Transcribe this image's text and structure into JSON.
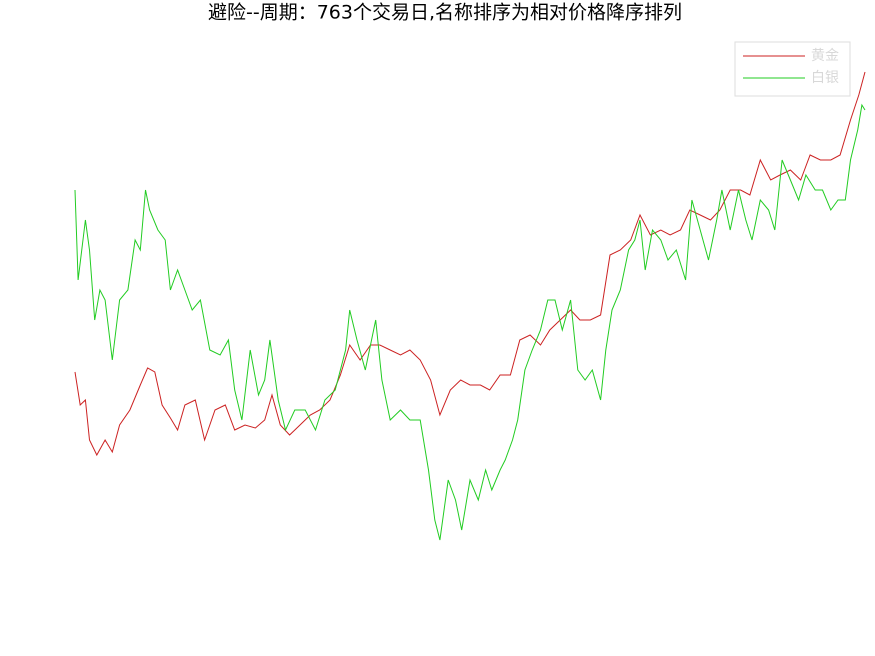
{
  "chart_data": {
    "type": "line",
    "title": "避险--周期：763个交易日,名称排序为相对价格降序排列",
    "xlim": [
      0,
      762
    ],
    "ylim": [
      0,
      112
    ],
    "legend": "upper right",
    "series": [
      {
        "name": "黄金",
        "color": "#cc2222",
        "x": [
          0,
          5,
          10,
          14,
          21,
          29,
          36,
          43,
          53,
          63,
          70,
          77,
          84,
          92,
          99,
          106,
          116,
          125,
          135,
          145,
          154,
          164,
          174,
          183,
          190,
          198,
          207,
          217,
          227,
          236,
          246,
          256,
          265,
          275,
          285,
          294,
          304,
          314,
          323,
          333,
          343,
          352,
          362,
          372,
          381,
          391,
          400,
          410,
          420,
          429,
          439,
          449,
          458,
          468,
          478,
          487,
          497,
          507,
          516,
          526,
          536,
          545,
          555,
          565,
          574,
          584,
          593,
          603,
          613,
          622,
          632,
          642,
          651,
          661,
          671,
          680,
          690,
          700,
          709,
          719,
          729,
          738,
          748,
          756,
          762
        ],
        "values": [
          45.6,
          39,
          40,
          32,
          29,
          32,
          29.6,
          35,
          38,
          43,
          46.4,
          45.6,
          39,
          36.4,
          34,
          39,
          40,
          32,
          38,
          39,
          34,
          35,
          34.4,
          36,
          41,
          35,
          33,
          35,
          37,
          38,
          40,
          45,
          51,
          48,
          51,
          51,
          50,
          49,
          50,
          48,
          44,
          37,
          42,
          44,
          43,
          43,
          42,
          45,
          45,
          52,
          53,
          51,
          54,
          56,
          58,
          56,
          56,
          57,
          69,
          70,
          72,
          77,
          73,
          74,
          73,
          74,
          78,
          77,
          76,
          78,
          82,
          82,
          81,
          88,
          84,
          85,
          86,
          84,
          89,
          88,
          88,
          89,
          96,
          101,
          105.6
        ]
      },
      {
        "name": "白银",
        "color": "#22cc22",
        "x": [
          0,
          3,
          10,
          14,
          19,
          24,
          29,
          36,
          43,
          51,
          58,
          63,
          68,
          72,
          80,
          87,
          92,
          99,
          106,
          113,
          121,
          130,
          140,
          148,
          154,
          161,
          169,
          177,
          183,
          188,
          196,
          203,
          212,
          222,
          232,
          241,
          251,
          261,
          265,
          272,
          280,
          290,
          296,
          304,
          314,
          323,
          333,
          341,
          347,
          352,
          360,
          367,
          373,
          381,
          389,
          396,
          402,
          410,
          415,
          422,
          427,
          434,
          441,
          449,
          456,
          463,
          470,
          478,
          485,
          492,
          499,
          507,
          512,
          518,
          526,
          534,
          540,
          545,
          550,
          557,
          565,
          572,
          580,
          589,
          595,
          603,
          611,
          619,
          624,
          632,
          640,
          647,
          653,
          661,
          669,
          675,
          682,
          690,
          698,
          705,
          714,
          721,
          729,
          736,
          743,
          748,
          755,
          759,
          762
        ],
        "values": [
          82,
          64,
          76,
          70,
          56,
          62,
          60,
          48,
          60,
          62,
          72,
          70,
          82,
          78,
          74,
          72,
          62,
          66,
          62,
          58,
          60,
          50,
          49,
          52,
          42,
          36,
          50,
          41,
          44,
          52,
          40,
          34,
          38,
          38,
          34,
          40,
          42,
          50,
          58,
          52,
          46,
          56,
          44,
          36,
          38,
          36,
          36,
          26,
          16,
          12,
          24,
          20,
          14,
          24,
          20,
          26,
          22,
          26,
          28,
          32,
          36,
          46,
          50,
          54,
          60,
          60,
          54,
          60,
          46,
          44,
          46,
          40,
          50,
          58,
          62,
          70,
          72,
          76,
          66,
          74,
          72,
          68,
          70,
          64,
          80,
          74,
          68,
          76,
          82,
          74,
          82,
          76,
          72,
          80,
          78,
          74,
          88,
          84,
          80,
          85,
          82,
          82,
          78,
          80,
          80,
          88,
          94,
          99,
          98
        ]
      }
    ]
  }
}
